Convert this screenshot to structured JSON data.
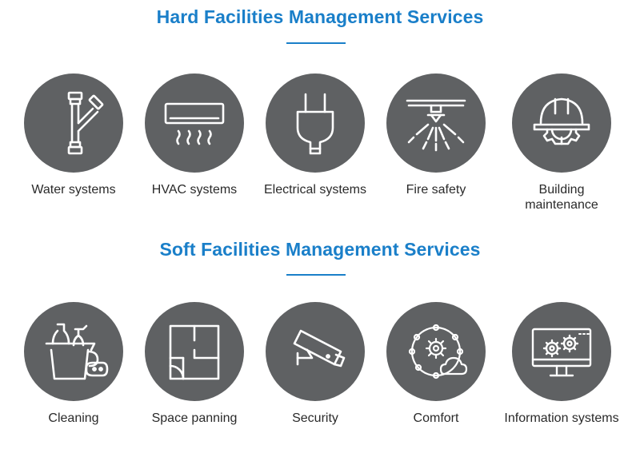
{
  "hard": {
    "title": "Hard Facilities Management Services",
    "items": [
      {
        "label": "Water systems",
        "icon": "pipe-icon"
      },
      {
        "label": "HVAC systems",
        "icon": "air-conditioner-icon"
      },
      {
        "label": "Electrical systems",
        "icon": "plug-icon"
      },
      {
        "label": "Fire safety",
        "icon": "sprinkler-icon"
      },
      {
        "label": "Building",
        "label2": "maintenance",
        "icon": "hard-hat-gear-icon"
      }
    ]
  },
  "soft": {
    "title": "Soft Facilities Management Services",
    "items": [
      {
        "label": "Cleaning",
        "icon": "cleaning-supplies-icon"
      },
      {
        "label": "Space panning",
        "icon": "floor-plan-icon"
      },
      {
        "label": "Security",
        "icon": "security-camera-icon"
      },
      {
        "label": "Comfort",
        "icon": "gear-network-cloud-icon"
      },
      {
        "label": "Information systems",
        "icon": "monitor-gears-icon"
      }
    ]
  },
  "colors": {
    "accent": "#1a7fc9",
    "circle": "#5f6163",
    "icon": "#ffffff",
    "text": "#2a2a2a"
  }
}
